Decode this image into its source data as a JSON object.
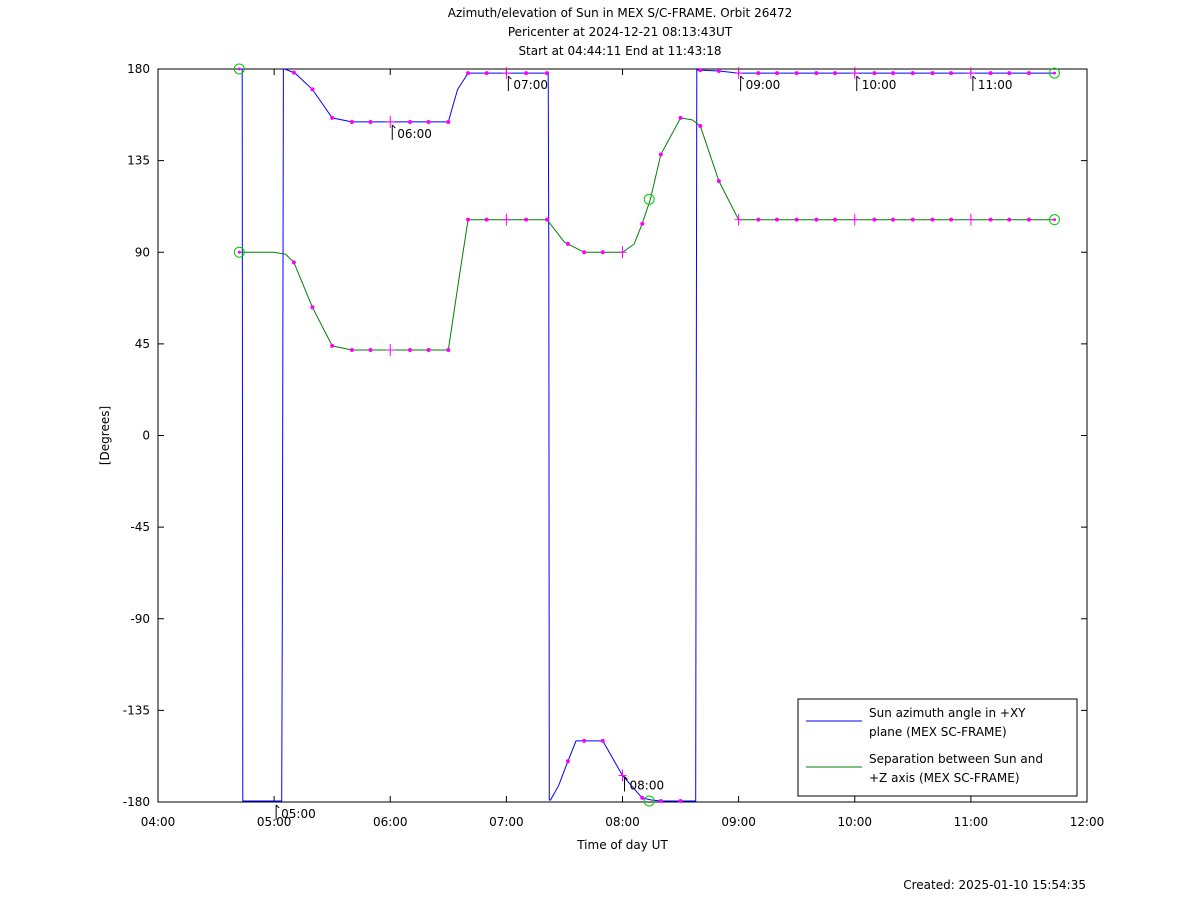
{
  "chart_data": {
    "type": "line",
    "title": [
      "Azimuth/elevation of Sun in MEX S/C-FRAME.  Orbit 26472",
      "Pericenter at 2024-12-21 08:13:43UT",
      "Start at 04:44:11 End at 11:43:18"
    ],
    "xlabel": "Time of day UT",
    "ylabel": "[Degrees]",
    "xlim": [
      4.0,
      12.0
    ],
    "ylim": [
      -180,
      180
    ],
    "x_ticks": [
      4,
      5,
      6,
      7,
      8,
      9,
      10,
      11,
      12
    ],
    "x_tick_labels": [
      "04:00",
      "05:00",
      "06:00",
      "07:00",
      "08:00",
      "09:00",
      "10:00",
      "11:00",
      "12:00"
    ],
    "y_ticks": [
      180,
      135,
      90,
      45,
      0,
      -45,
      -90,
      -135,
      -180
    ],
    "y_tick_labels": [
      "180",
      "135",
      "90",
      "45",
      "0",
      "-45",
      "-90",
      "-135",
      "-180"
    ],
    "legend_position": "bottom-right",
    "series": [
      {
        "name": [
          "Sun azimuth angle in +XY",
          "plane (MEX SC-FRAME)"
        ],
        "color": "#0000ff",
        "x": [
          4.7,
          4.725,
          4.73,
          5.065,
          5.07,
          5.08,
          5.1,
          5.18,
          5.33,
          5.5,
          5.67,
          5.83,
          6.0,
          6.17,
          6.33,
          6.5,
          6.58,
          6.67,
          6.83,
          7.0,
          7.17,
          7.36,
          7.365,
          7.37,
          7.38,
          7.45,
          7.53,
          7.6,
          7.67,
          7.83,
          8.0,
          8.17,
          8.25,
          8.33,
          8.5,
          8.63,
          8.635,
          8.64,
          8.65,
          8.83,
          9.0,
          9.17,
          9.5,
          10.0,
          10.5,
          11.0,
          11.5,
          11.72
        ],
        "y": [
          180,
          180,
          -179.5,
          -179.5,
          -90,
          180,
          179.8,
          178,
          170,
          156,
          154,
          154,
          154,
          154,
          154,
          154,
          170,
          178,
          178,
          178,
          178,
          178,
          90,
          -179,
          -179,
          -172,
          -160,
          -150,
          -150,
          -150,
          -167,
          -178,
          -179,
          -179.5,
          -179.5,
          -179.5,
          0,
          179.5,
          179.5,
          179,
          178,
          178,
          178,
          178,
          178,
          178,
          178,
          178
        ]
      },
      {
        "name": [
          "Separation between Sun and",
          "+Z axis (MEX SC-FRAME)"
        ],
        "color": "#008000",
        "x": [
          4.7,
          4.83,
          5.0,
          5.1,
          5.17,
          5.33,
          5.5,
          5.67,
          5.83,
          6.0,
          6.17,
          6.33,
          6.5,
          6.6,
          6.67,
          6.83,
          7.0,
          7.17,
          7.35,
          7.5,
          7.67,
          7.83,
          8.0,
          8.1,
          8.17,
          8.24,
          8.33,
          8.5,
          8.6,
          8.67,
          8.83,
          9.0,
          9.17,
          9.5,
          10.0,
          10.5,
          11.0,
          11.5,
          11.72
        ],
        "y": [
          90,
          90,
          90,
          89,
          85,
          63,
          44,
          42,
          42,
          42,
          42,
          42,
          42,
          80,
          106,
          106,
          106,
          106,
          106,
          95,
          90,
          90,
          90,
          94,
          104,
          116,
          138,
          156,
          155,
          152,
          125,
          106,
          106,
          106,
          106,
          106,
          106,
          106,
          106
        ]
      }
    ],
    "sample_markers_x": [
      5.17,
      5.33,
      5.5,
      5.67,
      5.83,
      6.0,
      6.17,
      6.33,
      6.5,
      6.67,
      6.83,
      7.0,
      7.17,
      7.35,
      7.53,
      7.67,
      7.83,
      8.0,
      8.17,
      8.33,
      8.5,
      8.67,
      8.83,
      9.0,
      9.17,
      9.33,
      9.5,
      9.67,
      9.83,
      10.0,
      10.17,
      10.33,
      10.5,
      10.67,
      10.83,
      11.0,
      11.17,
      11.33,
      11.5
    ],
    "marker_color": "#ff00ff",
    "start_end_markers": [
      {
        "x": 4.7,
        "y": 180
      },
      {
        "x": 4.7,
        "y": 90
      },
      {
        "x": 11.72,
        "y": 178
      },
      {
        "x": 11.72,
        "y": 106
      }
    ],
    "pericenter_markers": [
      {
        "x": 8.23,
        "y": -179.5
      },
      {
        "x": 8.23,
        "y": 116
      }
    ],
    "circle_color": "#00cc00",
    "hour_annotations": [
      {
        "label": "05:00",
        "x": 5.0,
        "y": -180
      },
      {
        "label": "06:00",
        "x": 6.0,
        "y": 154
      },
      {
        "label": "07:00",
        "x": 7.0,
        "y": 178
      },
      {
        "label": "08:00",
        "x": 8.0,
        "y": -166
      },
      {
        "label": "09:00",
        "x": 9.0,
        "y": 178
      },
      {
        "label": "10:00",
        "x": 10.0,
        "y": 178
      },
      {
        "label": "11:00",
        "x": 11.0,
        "y": 178
      }
    ],
    "created": "Created: 2025-01-10 15:54:35"
  }
}
